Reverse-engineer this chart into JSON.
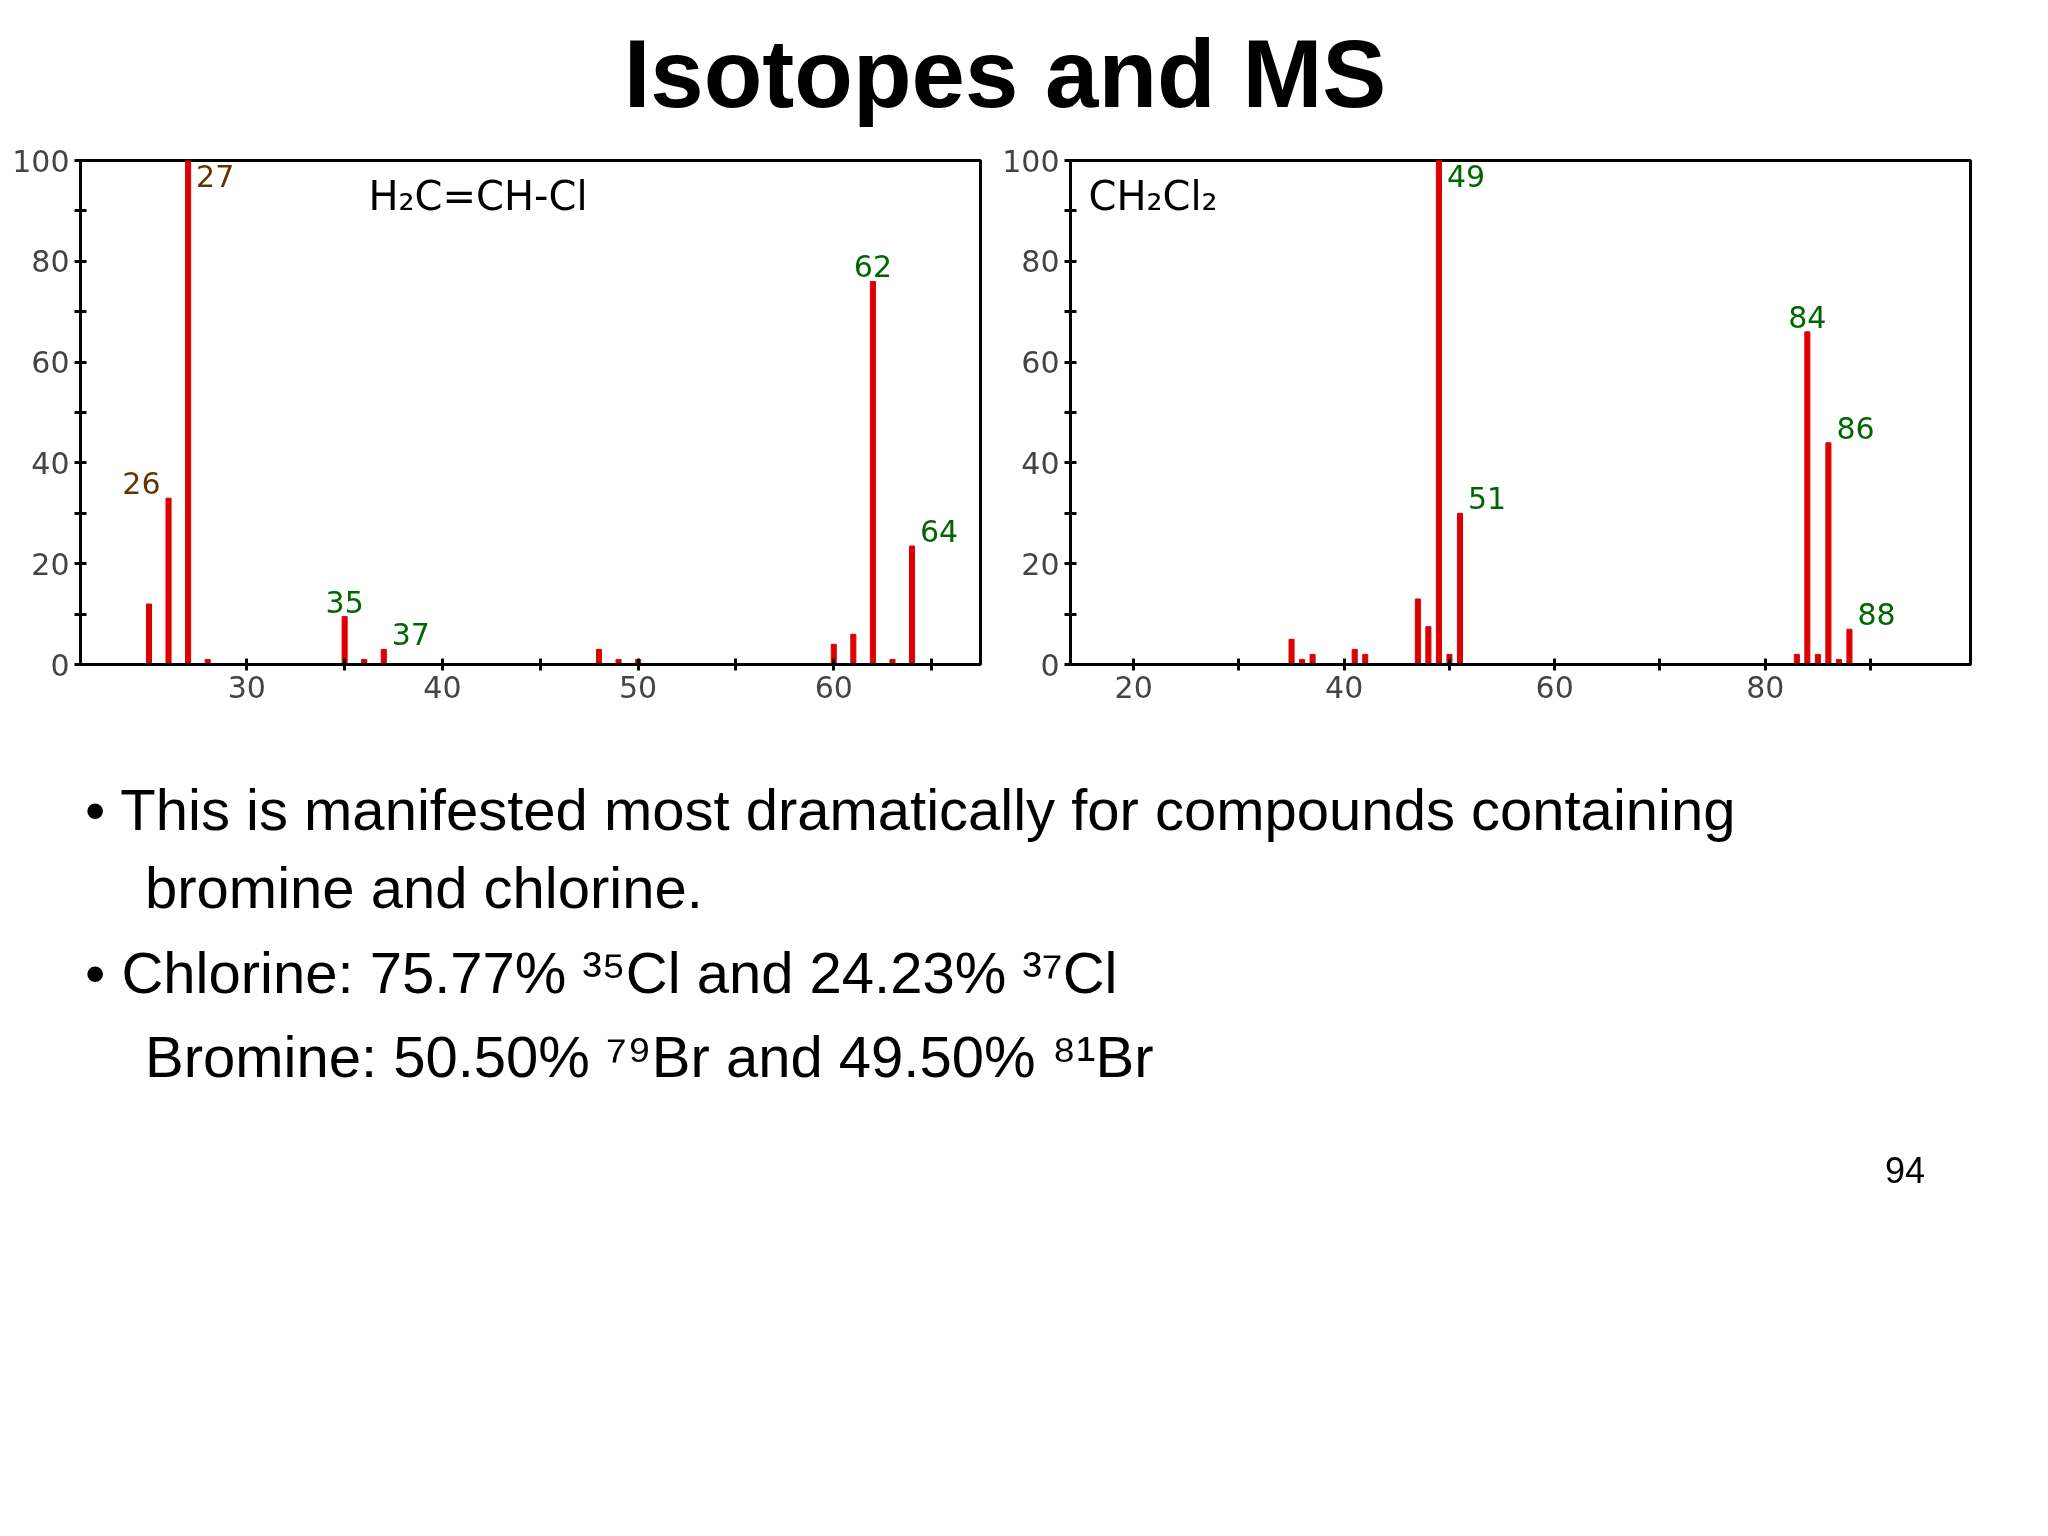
{
  "chart_data": [
    {
      "type": "bar",
      "title": "Isotopes and MS",
      "series": [
        {
          "color": "#dd0000",
          "x": [
            25,
            26,
            27,
            28
          ],
          "values": [
            12,
            33,
            100,
            1
          ]
        },
        {
          "color": "#dd0000",
          "x": [
            35,
            36,
            37,
            48,
            49,
            50,
            60,
            61,
            62,
            63,
            64
          ],
          "values": [
            9.5,
            1,
            3,
            3,
            1,
            1,
            4,
            6,
            76,
            1,
            23.5
          ]
        }
      ],
      "xlim": [
        21.5,
        67.5
      ],
      "xticks": [
        30,
        {
          "value": 35,
          "label": null
        },
        40,
        {
          "value": 45,
          "label": null
        },
        50,
        {
          "value": 55,
          "label": null
        },
        60,
        {
          "value": 65,
          "label": null
        }
      ],
      "ylim": [
        0,
        100
      ],
      "yticks": [
        0,
        {
          "value": 10,
          "label": null
        },
        20,
        {
          "value": 30,
          "label": null
        },
        40,
        {
          "value": 50,
          "label": null
        },
        60,
        {
          "value": 70,
          "label": null
        },
        80,
        {
          "value": 90,
          "label": null
        },
        100
      ],
      "grid": false,
      "annotations": [
        "H₂C=CH-Cl",
        {
          "text": "26",
          "x": 26,
          "y": 33
        },
        {
          "text": "27",
          "x": 27,
          "y": 100
        },
        {
          "text": "35",
          "x": 35,
          "y": 9.5
        },
        {
          "text": "37",
          "x": 37,
          "y": 3
        },
        {
          "text": "62",
          "x": 62,
          "y": 76
        },
        {
          "text": "64",
          "x": 64,
          "y": 23.5
        }
      ]
    },
    {
      "type": "bar",
      "series": [
        {
          "color": "#dd0000",
          "x": [
            35,
            36,
            37,
            41,
            42,
            47,
            48,
            49,
            50,
            51,
            83,
            84,
            85,
            86,
            87,
            88
          ],
          "values": [
            5,
            1,
            2,
            3,
            2,
            13,
            7.5,
            100,
            2,
            30,
            2,
            66,
            2,
            44,
            1,
            7
          ]
        }
      ],
      "xlim": [
        14,
        99.5
      ],
      "xticks": [
        20,
        {
          "value": 30,
          "label": null
        },
        40,
        {
          "value": 50,
          "label": null
        },
        60,
        {
          "value": 70,
          "label": null
        },
        80,
        {
          "value": 90,
          "label": null
        }
      ],
      "ylim": [
        0,
        100
      ],
      "yticks": [
        0,
        {
          "value": 10,
          "label": null
        },
        20,
        {
          "value": 30,
          "label": null
        },
        40,
        {
          "value": 50,
          "label": null
        },
        60,
        {
          "value": 70,
          "label": null
        },
        80,
        {
          "value": 90,
          "label": null
        },
        100
      ],
      "grid": false,
      "annotations": [
        "CH₂Cl₂",
        {
          "text": "49",
          "x": 49,
          "y": 100
        },
        {
          "text": "51",
          "x": 51,
          "y": 30
        },
        {
          "text": "84",
          "x": 84,
          "y": 66
        },
        {
          "text": "86",
          "x": 86,
          "y": 44
        },
        {
          "text": "88",
          "x": 88,
          "y": 7
        },
        "• This is manifested most dramatically for compounds containing bromine and chlorine.",
        "• Chlorine:   75.77% ³⁵Cl and 24.23% ³⁷Cl",
        "Bromine:   50.50% ⁷⁹Br and 49.50% ⁸¹Br",
        "94"
      ]
    }
  ]
}
